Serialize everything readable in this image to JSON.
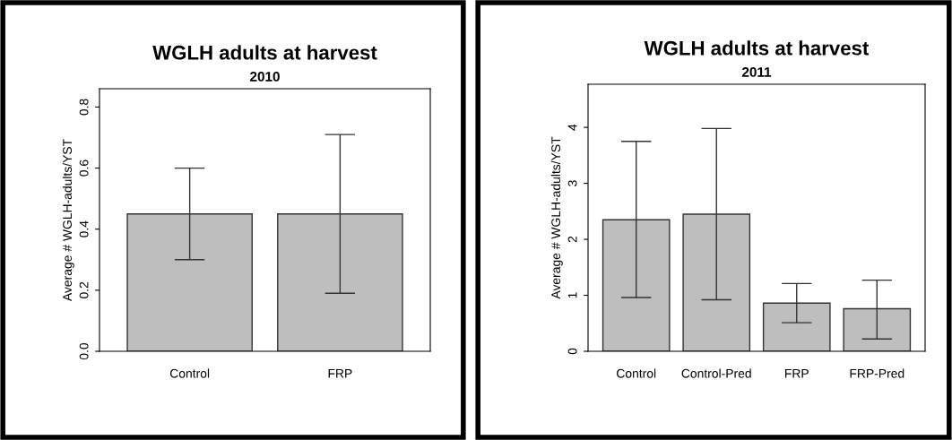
{
  "chart_data": [
    {
      "type": "bar",
      "title": "WGLH adults at harvest",
      "subtitle": "2010",
      "ylabel": "Average # WGLH-adults/YST",
      "categories": [
        "Control",
        "FRP"
      ],
      "series": [
        {
          "color": "#bebebe",
          "values": [
            0.45,
            0.45
          ],
          "errors": [
            [
              0.3,
              0.6
            ],
            [
              0.19,
              0.71
            ]
          ]
        }
      ],
      "ylim": [
        0,
        0.86
      ],
      "yticks": [
        {
          "value": 0,
          "label": "0.0"
        },
        0.2,
        0.4,
        0.6,
        0.8
      ],
      "grid": false,
      "legend": false
    },
    {
      "type": "bar",
      "title": "WGLH adults at harvest",
      "subtitle": "2011",
      "ylabel": "Average # WGLH-adults/YST",
      "categories": [
        "Control",
        "Control-Pred",
        "FRP",
        "FRP-Pred"
      ],
      "series": [
        {
          "color": "#bebebe",
          "values": [
            2.35,
            2.45,
            0.86,
            0.76
          ],
          "errors": [
            [
              0.96,
              3.75
            ],
            [
              0.92,
              3.98
            ],
            [
              0.51,
              1.21
            ],
            [
              0.22,
              1.27
            ]
          ]
        }
      ],
      "ylim": [
        0,
        4.77
      ],
      "yticks": [
        0,
        1,
        2,
        3,
        4
      ],
      "grid": false,
      "legend": false
    }
  ]
}
